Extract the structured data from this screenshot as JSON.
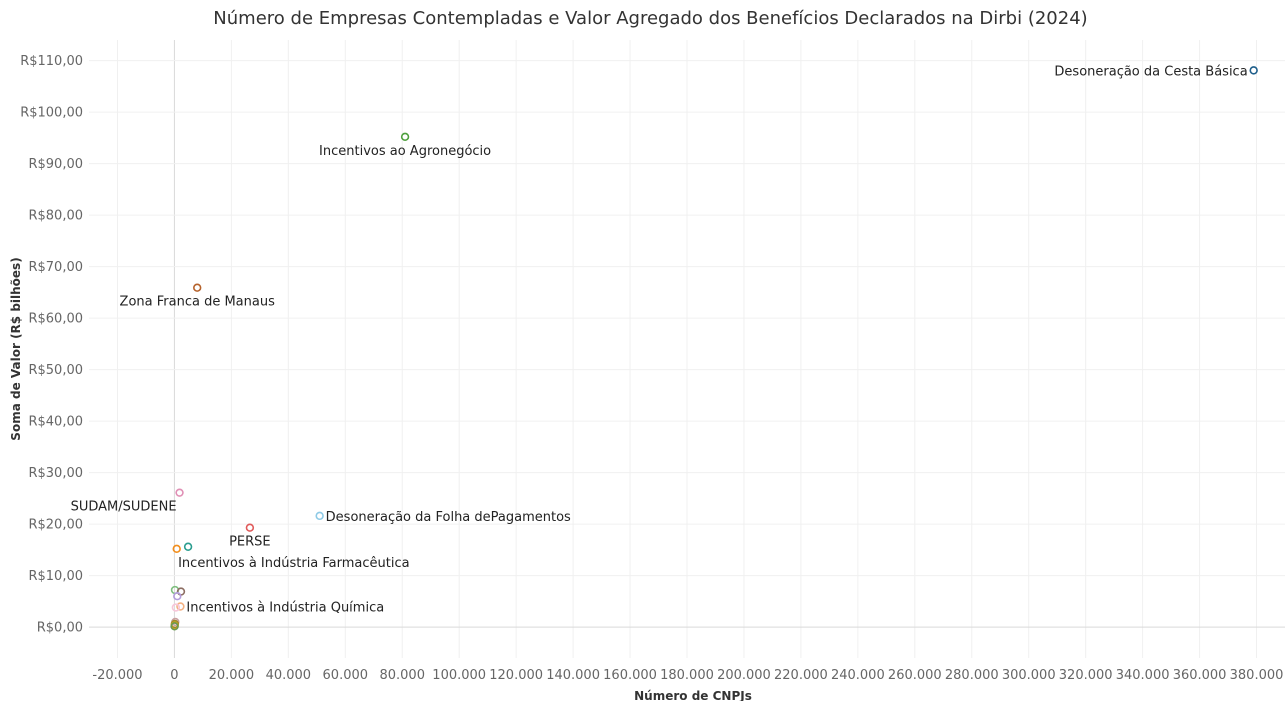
{
  "chart_data": {
    "type": "scatter",
    "title": "Número de Empresas Contempladas e Valor Agregado dos Benefícios Declarados na Dirbi (2024)",
    "xlabel": "Número de CNPJs",
    "ylabel": "Soma de Valor (R$ bilhões)",
    "xlim": [
      -30000,
      390000
    ],
    "ylim": [
      -6,
      114
    ],
    "x_ticks": [
      -20000,
      0,
      20000,
      40000,
      60000,
      80000,
      100000,
      120000,
      140000,
      160000,
      180000,
      200000,
      220000,
      240000,
      260000,
      280000,
      300000,
      320000,
      340000,
      360000,
      380000
    ],
    "x_tick_labels": [
      "-20.000",
      "0",
      "20.000",
      "40.000",
      "60.000",
      "80.000",
      "100.000",
      "120.000",
      "140.000",
      "160.000",
      "180.000",
      "200.000",
      "220.000",
      "240.000",
      "260.000",
      "280.000",
      "300.000",
      "320.000",
      "340.000",
      "360.000",
      "380.000"
    ],
    "y_ticks": [
      0,
      10,
      20,
      30,
      40,
      50,
      60,
      70,
      80,
      90,
      100,
      110
    ],
    "y_tick_labels": [
      "R$0,00",
      "R$10,00",
      "R$20,00",
      "R$30,00",
      "R$40,00",
      "R$50,00",
      "R$60,00",
      "R$70,00",
      "R$80,00",
      "R$90,00",
      "R$100,00",
      "R$110,00"
    ],
    "grid": true,
    "legend": "none",
    "points": [
      {
        "label": "Desoneração da Cesta Básica",
        "x": 379000,
        "y": 108.1,
        "color": "#1f5f8b",
        "label_pos": "left"
      },
      {
        "label": "Incentivos ao Agronegócio",
        "x": 81000,
        "y": 95.2,
        "color": "#4e9f3d",
        "label_pos": "below"
      },
      {
        "label": "Zona Franca de Manaus",
        "x": 8000,
        "y": 65.9,
        "color": "#b5622c",
        "label_pos": "below"
      },
      {
        "label": "SUDAM/SUDENE",
        "x": 1800,
        "y": 26.1,
        "color": "#e08fb5",
        "label_pos": "below-left"
      },
      {
        "label": "Desoneração da Folha dePagamentos",
        "x": 51000,
        "y": 21.6,
        "color": "#8ecae6",
        "label_pos": "right"
      },
      {
        "label": "PERSE",
        "x": 26500,
        "y": 19.3,
        "color": "#e05a5a",
        "label_pos": "below"
      },
      {
        "label": "Incentivos à Indústria Farmacêutica",
        "x": 4800,
        "y": 15.6,
        "color": "#2a9d8f",
        "label_pos": "below-right"
      },
      {
        "label": "",
        "x": 800,
        "y": 15.2,
        "color": "#f28e1c"
      },
      {
        "label": "",
        "x": 200,
        "y": 7.2,
        "color": "#7fbf7f"
      },
      {
        "label": "",
        "x": 2300,
        "y": 6.9,
        "color": "#8c6d62"
      },
      {
        "label": "",
        "x": 1000,
        "y": 6.0,
        "color": "#b39ddb"
      },
      {
        "label": "Incentivos à Indústria Química",
        "x": 2100,
        "y": 4.0,
        "color": "#f4b183",
        "label_pos": "right"
      },
      {
        "label": "",
        "x": 500,
        "y": 3.8,
        "color": "#f7c6d9"
      },
      {
        "label": "",
        "x": 300,
        "y": 1.0,
        "color": "#c9a0a0"
      },
      {
        "label": "",
        "x": 150,
        "y": 0.6,
        "color": "#9c8b2c"
      },
      {
        "label": "",
        "x": 80,
        "y": 0.3,
        "color": "#d4a017"
      },
      {
        "label": "",
        "x": 50,
        "y": 0.15,
        "color": "#6a994e"
      }
    ]
  }
}
